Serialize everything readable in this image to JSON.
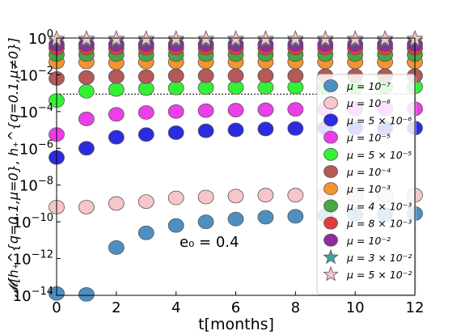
{
  "chart_data": {
    "type": "scatter",
    "xlabel": "t[months]",
    "ylabel": "𝓜[h₊^{q=0.1,μ=0}, h₊^{q=0.1,μ≠0}]",
    "annotation": "e₀ = 0.4",
    "x_ticks": [
      "0",
      "2",
      "4",
      "6",
      "8",
      "10",
      "12"
    ],
    "y_ticks": [
      {
        "base": "10",
        "exp": "0"
      },
      {
        "base": "10",
        "exp": "−2"
      },
      {
        "base": "10",
        "exp": "−4"
      },
      {
        "base": "10",
        "exp": "−6"
      },
      {
        "base": "10",
        "exp": "−8"
      },
      {
        "base": "10",
        "exp": "−10"
      },
      {
        "base": "10",
        "exp": "−12"
      },
      {
        "base": "10",
        "exp": "−14"
      }
    ],
    "xlim": [
      0,
      12
    ],
    "ylim_log10": [
      -14,
      0
    ],
    "reference_line_log10": -3.05,
    "x": [
      0,
      1,
      2,
      3,
      4,
      5,
      6,
      7,
      8,
      9,
      10,
      11,
      12
    ],
    "legend_position": "right",
    "series": [
      {
        "name": "μ = 10⁻⁷",
        "color": "#4e8fc2",
        "marker": "circle",
        "y_log10": [
          -13.9,
          -13.95,
          -11.4,
          -10.6,
          -10.2,
          -10.0,
          -9.85,
          -9.75,
          -9.7,
          -9.65,
          -9.6,
          -9.6,
          -9.55
        ]
      },
      {
        "name": "μ = 10⁻⁶",
        "color": "#f6c6ca",
        "marker": "circle",
        "y_log10": [
          -9.2,
          -9.2,
          -9.0,
          -8.9,
          -8.7,
          -8.65,
          -8.6,
          -8.55,
          -8.55,
          -8.55,
          -8.55,
          -8.55,
          -8.55
        ]
      },
      {
        "name": "μ = 5 × 10⁻⁶",
        "color": "#2b2be0",
        "marker": "circle",
        "y_log10": [
          -6.5,
          -6.0,
          -5.4,
          -5.25,
          -5.15,
          -5.05,
          -5.0,
          -4.95,
          -4.92,
          -4.9,
          -4.9,
          -4.9,
          -4.9
        ]
      },
      {
        "name": "μ = 10⁻⁵",
        "color": "#ec3eea",
        "marker": "circle",
        "y_log10": [
          -5.25,
          -4.4,
          -4.15,
          -4.05,
          -4.0,
          -3.95,
          -3.92,
          -3.9,
          -3.88,
          -3.87,
          -3.86,
          -3.85,
          -3.85
        ]
      },
      {
        "name": "μ = 5 × 10⁻⁵",
        "color": "#33f233",
        "marker": "circle",
        "y_log10": [
          -3.4,
          -2.9,
          -2.8,
          -2.75,
          -2.72,
          -2.7,
          -2.69,
          -2.68,
          -2.67,
          -2.66,
          -2.65,
          -2.65,
          -2.65
        ]
      },
      {
        "name": "μ = 10⁻⁴",
        "color": "#b55959",
        "marker": "circle",
        "y_log10": [
          -2.2,
          -2.15,
          -2.1,
          -2.1,
          -2.05,
          -2.05,
          -2.05,
          -2.05,
          -2.05,
          -2.05,
          -2.05,
          -2.05,
          -2.05
        ]
      },
      {
        "name": "μ = 10⁻³",
        "color": "#f5942f",
        "marker": "circle",
        "y_log10": [
          -1.3,
          -1.3,
          -1.35,
          -1.3,
          -1.3,
          -1.3,
          -1.3,
          -1.3,
          -1.3,
          -1.3,
          -1.3,
          -1.3,
          -1.3
        ]
      },
      {
        "name": "μ = 4 × 10⁻³",
        "color": "#45a845",
        "marker": "circle",
        "y_log10": [
          -0.9,
          -0.9,
          -0.9,
          -0.9,
          -0.9,
          -0.9,
          -0.9,
          -0.9,
          -0.9,
          -0.9,
          -0.9,
          -0.9,
          -0.9
        ]
      },
      {
        "name": "μ = 8 × 10⁻³",
        "color": "#e03d3d",
        "marker": "circle",
        "y_log10": [
          -0.55,
          -0.55,
          -0.55,
          -0.55,
          -0.55,
          -0.55,
          -0.55,
          -0.55,
          -0.55,
          -0.55,
          -0.55,
          -0.55,
          -0.55
        ]
      },
      {
        "name": "μ = 10⁻²",
        "color": "#8e2ca0",
        "marker": "circle",
        "y_log10": [
          -0.35,
          -0.35,
          -0.35,
          -0.35,
          -0.35,
          -0.35,
          -0.35,
          -0.35,
          -0.35,
          -0.35,
          -0.35,
          -0.35,
          -0.35
        ]
      },
      {
        "name": "μ = 3 × 10⁻²",
        "color": "#3aa39a",
        "marker": "star",
        "y_log10": [
          -0.15,
          -0.15,
          -0.15,
          -0.15,
          -0.15,
          -0.15,
          -0.15,
          -0.15,
          -0.15,
          -0.15,
          -0.15,
          -0.15,
          -0.15
        ]
      },
      {
        "name": "μ = 5 × 10⁻²",
        "color": "#f6c6ca",
        "marker": "star",
        "y_log10": [
          -0.05,
          -0.05,
          -0.05,
          -0.05,
          -0.05,
          -0.05,
          -0.05,
          -0.05,
          -0.05,
          -0.05,
          -0.05,
          -0.05,
          -0.05
        ]
      }
    ]
  }
}
